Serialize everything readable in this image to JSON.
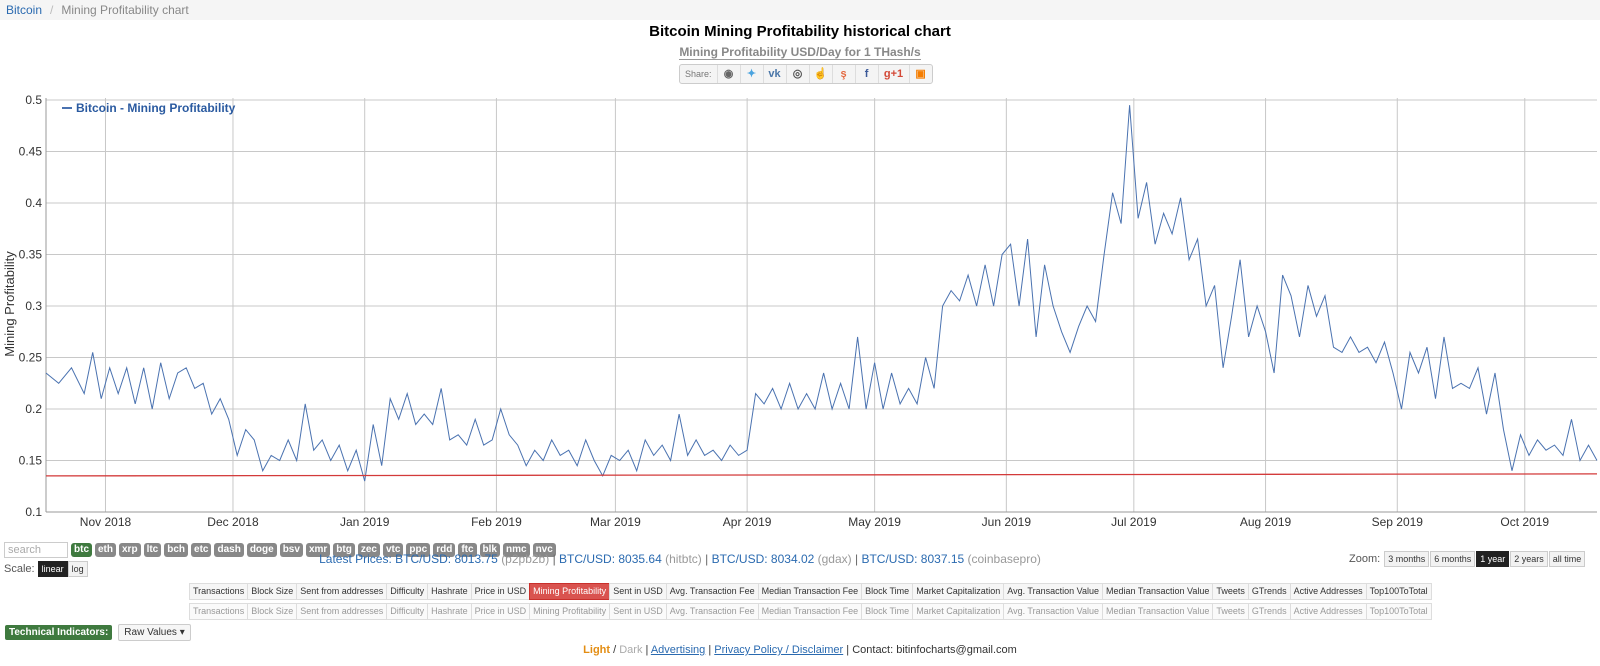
{
  "breadcrumb": {
    "home": "Bitcoin",
    "current": "Mining Profitability chart"
  },
  "title": "Bitcoin Mining Profitability historical chart",
  "subtitle": "Mining Profitability USD/Day for 1 THash/s",
  "share": {
    "label": "Share:",
    "icons": [
      "reddit-icon",
      "twitter-icon",
      "vk-icon",
      "weibo-icon",
      "like-icon",
      "stumbleupon-icon",
      "facebook-icon",
      "google-plus-icon",
      "blogger-icon"
    ]
  },
  "colors": {
    "line": "#4a72b0",
    "baseline": "#d33a3a",
    "grid": "#c8c8c8",
    "accent": "#3f7a3f",
    "selected": "#d9534f"
  },
  "search": {
    "placeholder": "search"
  },
  "coins": [
    "btc",
    "eth",
    "xrp",
    "ltc",
    "bch",
    "etc",
    "dash",
    "doge",
    "bsv",
    "xmr",
    "btg",
    "zec",
    "vtc",
    "ppc",
    "rdd",
    "ftc",
    "blk",
    "nmc",
    "nvc"
  ],
  "active_coin": "btc",
  "scale": {
    "label": "Scale:",
    "linear": "linear",
    "log": "log"
  },
  "prices": [
    {
      "pair": "BTC/USD",
      "value": "8013.75",
      "source": "(p2pb2b)"
    },
    {
      "pair": "BTC/USD",
      "value": "8035.64",
      "source": "(hitbtc)"
    },
    {
      "pair": "BTC/USD",
      "value": "8034.02",
      "source": "(gdax)"
    },
    {
      "pair": "BTC/USD",
      "value": "8037.15",
      "source": "(coinbasepro)"
    }
  ],
  "prices_label": "Latest Prices:",
  "zoom": {
    "label": "Zoom:",
    "options": [
      "3 months",
      "6 months",
      "1 year",
      "2 years",
      "all time"
    ],
    "selected": "1 year"
  },
  "metrics": [
    "Transactions",
    "Block Size",
    "Sent from addresses",
    "Difficulty",
    "Hashrate",
    "Price in USD",
    "Mining Profitability",
    "Sent in USD",
    "Avg. Transaction Fee",
    "Median Transaction Fee",
    "Block Time",
    "Market Capitalization",
    "Avg. Transaction Value",
    "Median Transaction Value",
    "Tweets",
    "GTrends",
    "Active Addresses",
    "Top100ToTotal"
  ],
  "selected_metric": "Mining Profitability",
  "tech": {
    "label": "Technical Indicators:",
    "dropdown": "Raw Values"
  },
  "footer": {
    "light": "Light",
    "dark": "Dark",
    "advertising": "Advertising",
    "privacy": "Privacy Policy / Disclaimer",
    "contact": "Contact: bitinfocharts@gmail.com"
  },
  "chart_data": {
    "type": "line",
    "title": "Bitcoin Mining Profitability historical chart",
    "ylabel": "Mining Profitability",
    "ylim": [
      0.1,
      0.5
    ],
    "yticks": [
      0.1,
      0.15,
      0.2,
      0.25,
      0.3,
      0.35,
      0.4,
      0.45,
      0.5
    ],
    "xlim": [
      "2018-10-18",
      "2019-10-18"
    ],
    "xticks": [
      {
        "date": "2018-11-01",
        "label": "Nov 2018"
      },
      {
        "date": "2018-12-01",
        "label": "Dec 2018"
      },
      {
        "date": "2019-01-01",
        "label": "Jan 2019"
      },
      {
        "date": "2019-02-01",
        "label": "Feb 2019"
      },
      {
        "date": "2019-03-01",
        "label": "Mar 2019"
      },
      {
        "date": "2019-04-01",
        "label": "Apr 2019"
      },
      {
        "date": "2019-05-01",
        "label": "May 2019"
      },
      {
        "date": "2019-06-01",
        "label": "Jun 2019"
      },
      {
        "date": "2019-07-01",
        "label": "Jul 2019"
      },
      {
        "date": "2019-08-01",
        "label": "Aug 2019"
      },
      {
        "date": "2019-09-01",
        "label": "Sep 2019"
      },
      {
        "date": "2019-10-01",
        "label": "Oct 2019"
      }
    ],
    "grid": true,
    "legend": "top-left",
    "series": [
      {
        "name": "Bitcoin - Mining Profitability",
        "points": [
          [
            "2018-10-18",
            0.235
          ],
          [
            "2018-10-21",
            0.225
          ],
          [
            "2018-10-24",
            0.24
          ],
          [
            "2018-10-27",
            0.215
          ],
          [
            "2018-10-29",
            0.255
          ],
          [
            "2018-10-31",
            0.21
          ],
          [
            "2018-11-02",
            0.24
          ],
          [
            "2018-11-04",
            0.215
          ],
          [
            "2018-11-06",
            0.24
          ],
          [
            "2018-11-08",
            0.205
          ],
          [
            "2018-11-10",
            0.24
          ],
          [
            "2018-11-12",
            0.2
          ],
          [
            "2018-11-14",
            0.245
          ],
          [
            "2018-11-16",
            0.21
          ],
          [
            "2018-11-18",
            0.235
          ],
          [
            "2018-11-20",
            0.24
          ],
          [
            "2018-11-22",
            0.22
          ],
          [
            "2018-11-24",
            0.225
          ],
          [
            "2018-11-26",
            0.195
          ],
          [
            "2018-11-28",
            0.21
          ],
          [
            "2018-11-30",
            0.19
          ],
          [
            "2018-12-02",
            0.155
          ],
          [
            "2018-12-04",
            0.18
          ],
          [
            "2018-12-06",
            0.17
          ],
          [
            "2018-12-08",
            0.14
          ],
          [
            "2018-12-10",
            0.155
          ],
          [
            "2018-12-12",
            0.15
          ],
          [
            "2018-12-14",
            0.17
          ],
          [
            "2018-12-16",
            0.15
          ],
          [
            "2018-12-18",
            0.205
          ],
          [
            "2018-12-20",
            0.16
          ],
          [
            "2018-12-22",
            0.17
          ],
          [
            "2018-12-24",
            0.15
          ],
          [
            "2018-12-26",
            0.165
          ],
          [
            "2018-12-28",
            0.14
          ],
          [
            "2018-12-30",
            0.16
          ],
          [
            "2019-01-01",
            0.13
          ],
          [
            "2019-01-03",
            0.185
          ],
          [
            "2019-01-05",
            0.145
          ],
          [
            "2019-01-07",
            0.21
          ],
          [
            "2019-01-09",
            0.19
          ],
          [
            "2019-01-11",
            0.215
          ],
          [
            "2019-01-13",
            0.185
          ],
          [
            "2019-01-15",
            0.195
          ],
          [
            "2019-01-17",
            0.185
          ],
          [
            "2019-01-19",
            0.22
          ],
          [
            "2019-01-21",
            0.17
          ],
          [
            "2019-01-23",
            0.175
          ],
          [
            "2019-01-25",
            0.165
          ],
          [
            "2019-01-27",
            0.19
          ],
          [
            "2019-01-29",
            0.165
          ],
          [
            "2019-01-31",
            0.17
          ],
          [
            "2019-02-02",
            0.2
          ],
          [
            "2019-02-04",
            0.175
          ],
          [
            "2019-02-06",
            0.165
          ],
          [
            "2019-02-08",
            0.145
          ],
          [
            "2019-02-10",
            0.16
          ],
          [
            "2019-02-12",
            0.15
          ],
          [
            "2019-02-14",
            0.17
          ],
          [
            "2019-02-16",
            0.155
          ],
          [
            "2019-02-18",
            0.16
          ],
          [
            "2019-02-20",
            0.145
          ],
          [
            "2019-02-22",
            0.17
          ],
          [
            "2019-02-24",
            0.15
          ],
          [
            "2019-02-26",
            0.135
          ],
          [
            "2019-02-28",
            0.155
          ],
          [
            "2019-03-02",
            0.15
          ],
          [
            "2019-03-04",
            0.16
          ],
          [
            "2019-03-06",
            0.14
          ],
          [
            "2019-03-08",
            0.17
          ],
          [
            "2019-03-10",
            0.155
          ],
          [
            "2019-03-12",
            0.165
          ],
          [
            "2019-03-14",
            0.15
          ],
          [
            "2019-03-16",
            0.195
          ],
          [
            "2019-03-18",
            0.155
          ],
          [
            "2019-03-20",
            0.17
          ],
          [
            "2019-03-22",
            0.155
          ],
          [
            "2019-03-24",
            0.16
          ],
          [
            "2019-03-26",
            0.15
          ],
          [
            "2019-03-28",
            0.165
          ],
          [
            "2019-03-30",
            0.155
          ],
          [
            "2019-04-01",
            0.16
          ],
          [
            "2019-04-03",
            0.215
          ],
          [
            "2019-04-05",
            0.205
          ],
          [
            "2019-04-07",
            0.22
          ],
          [
            "2019-04-09",
            0.2
          ],
          [
            "2019-04-11",
            0.225
          ],
          [
            "2019-04-13",
            0.2
          ],
          [
            "2019-04-15",
            0.215
          ],
          [
            "2019-04-17",
            0.2
          ],
          [
            "2019-04-19",
            0.235
          ],
          [
            "2019-04-21",
            0.2
          ],
          [
            "2019-04-23",
            0.225
          ],
          [
            "2019-04-25",
            0.2
          ],
          [
            "2019-04-27",
            0.27
          ],
          [
            "2019-04-29",
            0.2
          ],
          [
            "2019-05-01",
            0.245
          ],
          [
            "2019-05-03",
            0.2
          ],
          [
            "2019-05-05",
            0.235
          ],
          [
            "2019-05-07",
            0.205
          ],
          [
            "2019-05-09",
            0.22
          ],
          [
            "2019-05-11",
            0.205
          ],
          [
            "2019-05-13",
            0.25
          ],
          [
            "2019-05-15",
            0.22
          ],
          [
            "2019-05-17",
            0.3
          ],
          [
            "2019-05-19",
            0.315
          ],
          [
            "2019-05-21",
            0.305
          ],
          [
            "2019-05-23",
            0.33
          ],
          [
            "2019-05-25",
            0.3
          ],
          [
            "2019-05-27",
            0.34
          ],
          [
            "2019-05-29",
            0.3
          ],
          [
            "2019-05-31",
            0.35
          ],
          [
            "2019-06-02",
            0.36
          ],
          [
            "2019-06-04",
            0.3
          ],
          [
            "2019-06-06",
            0.365
          ],
          [
            "2019-06-08",
            0.27
          ],
          [
            "2019-06-10",
            0.34
          ],
          [
            "2019-06-12",
            0.3
          ],
          [
            "2019-06-14",
            0.275
          ],
          [
            "2019-06-16",
            0.255
          ],
          [
            "2019-06-18",
            0.28
          ],
          [
            "2019-06-20",
            0.3
          ],
          [
            "2019-06-22",
            0.285
          ],
          [
            "2019-06-24",
            0.35
          ],
          [
            "2019-06-26",
            0.41
          ],
          [
            "2019-06-28",
            0.38
          ],
          [
            "2019-06-30",
            0.495
          ],
          [
            "2019-07-02",
            0.385
          ],
          [
            "2019-07-04",
            0.42
          ],
          [
            "2019-07-06",
            0.36
          ],
          [
            "2019-07-08",
            0.39
          ],
          [
            "2019-07-10",
            0.37
          ],
          [
            "2019-07-12",
            0.405
          ],
          [
            "2019-07-14",
            0.345
          ],
          [
            "2019-07-16",
            0.365
          ],
          [
            "2019-07-18",
            0.3
          ],
          [
            "2019-07-20",
            0.32
          ],
          [
            "2019-07-22",
            0.24
          ],
          [
            "2019-07-24",
            0.29
          ],
          [
            "2019-07-26",
            0.345
          ],
          [
            "2019-07-28",
            0.27
          ],
          [
            "2019-07-30",
            0.3
          ],
          [
            "2019-08-01",
            0.275
          ],
          [
            "2019-08-03",
            0.235
          ],
          [
            "2019-08-05",
            0.33
          ],
          [
            "2019-08-07",
            0.31
          ],
          [
            "2019-08-09",
            0.27
          ],
          [
            "2019-08-11",
            0.32
          ],
          [
            "2019-08-13",
            0.29
          ],
          [
            "2019-08-15",
            0.31
          ],
          [
            "2019-08-17",
            0.26
          ],
          [
            "2019-08-19",
            0.255
          ],
          [
            "2019-08-21",
            0.27
          ],
          [
            "2019-08-23",
            0.255
          ],
          [
            "2019-08-25",
            0.26
          ],
          [
            "2019-08-27",
            0.245
          ],
          [
            "2019-08-29",
            0.265
          ],
          [
            "2019-08-31",
            0.235
          ],
          [
            "2019-09-02",
            0.2
          ],
          [
            "2019-09-04",
            0.255
          ],
          [
            "2019-09-06",
            0.235
          ],
          [
            "2019-09-08",
            0.26
          ],
          [
            "2019-09-10",
            0.21
          ],
          [
            "2019-09-12",
            0.27
          ],
          [
            "2019-09-14",
            0.22
          ],
          [
            "2019-09-16",
            0.225
          ],
          [
            "2019-09-18",
            0.22
          ],
          [
            "2019-09-20",
            0.24
          ],
          [
            "2019-09-22",
            0.195
          ],
          [
            "2019-09-24",
            0.235
          ],
          [
            "2019-09-26",
            0.18
          ],
          [
            "2019-09-28",
            0.14
          ],
          [
            "2019-09-30",
            0.175
          ],
          [
            "2019-10-02",
            0.155
          ],
          [
            "2019-10-04",
            0.17
          ],
          [
            "2019-10-06",
            0.16
          ],
          [
            "2019-10-08",
            0.165
          ],
          [
            "2019-10-10",
            0.155
          ],
          [
            "2019-10-12",
            0.19
          ],
          [
            "2019-10-14",
            0.15
          ],
          [
            "2019-10-16",
            0.165
          ],
          [
            "2019-10-18",
            0.15
          ]
        ]
      },
      {
        "name": "baseline",
        "points": [
          [
            "2018-10-18",
            0.135
          ],
          [
            "2019-10-18",
            0.137
          ]
        ]
      }
    ]
  }
}
